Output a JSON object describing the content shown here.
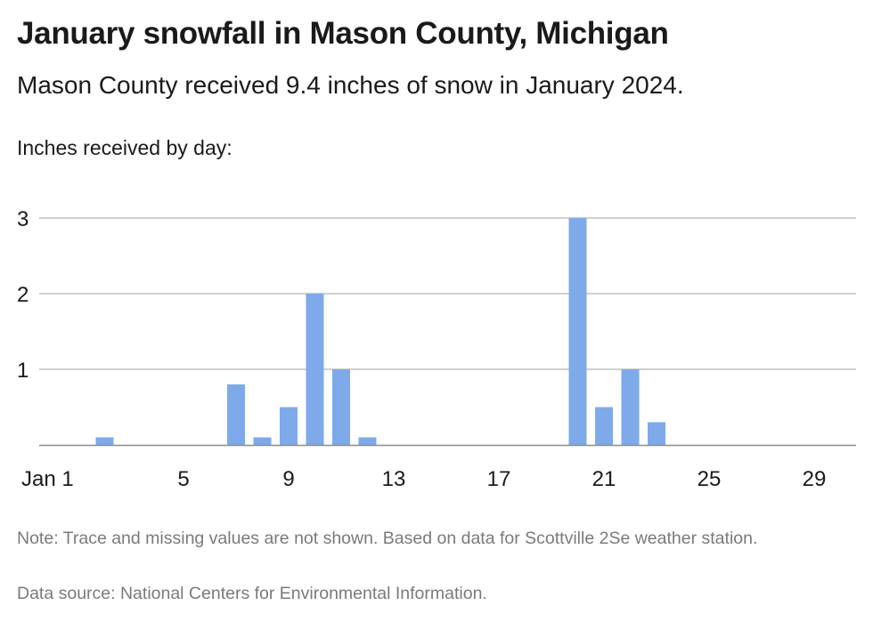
{
  "header": {
    "title": "January snowfall in Mason County, Michigan",
    "subtitle": "Mason County received 9.4 inches of snow in January 2024.",
    "axis_caption": "Inches received by day:"
  },
  "footer": {
    "note": "Note: Trace and missing values are not shown. Based on data for Scottville 2Se weather station.",
    "source": "Data source: National Centers for Environmental Information."
  },
  "colors": {
    "bar": "#7eaaea",
    "grid": "#b3b3b3",
    "baseline": "#8c8c8c"
  },
  "chart_data": {
    "type": "bar",
    "title": "January snowfall in Mason County, Michigan",
    "xlabel": "",
    "ylabel": "Inches received by day:",
    "x_tick_labels": [
      "Jan 1",
      "5",
      "9",
      "13",
      "17",
      "21",
      "25",
      "29"
    ],
    "y_ticks": [
      1,
      2,
      3
    ],
    "ylim": [
      0,
      3
    ],
    "grid": true,
    "categories": [
      1,
      2,
      3,
      4,
      5,
      6,
      7,
      8,
      9,
      10,
      11,
      12,
      13,
      14,
      15,
      16,
      17,
      18,
      19,
      20,
      21,
      22,
      23,
      24,
      25,
      26,
      27,
      28,
      29,
      30,
      31
    ],
    "values": [
      0,
      0.1,
      0,
      0,
      0,
      0,
      0.8,
      0.1,
      0.5,
      2.0,
      1.0,
      0.1,
      0,
      0,
      0,
      0,
      0,
      0,
      0,
      3.0,
      0.5,
      1.0,
      0.3,
      0,
      0,
      0,
      0,
      0,
      0,
      0,
      0
    ]
  }
}
